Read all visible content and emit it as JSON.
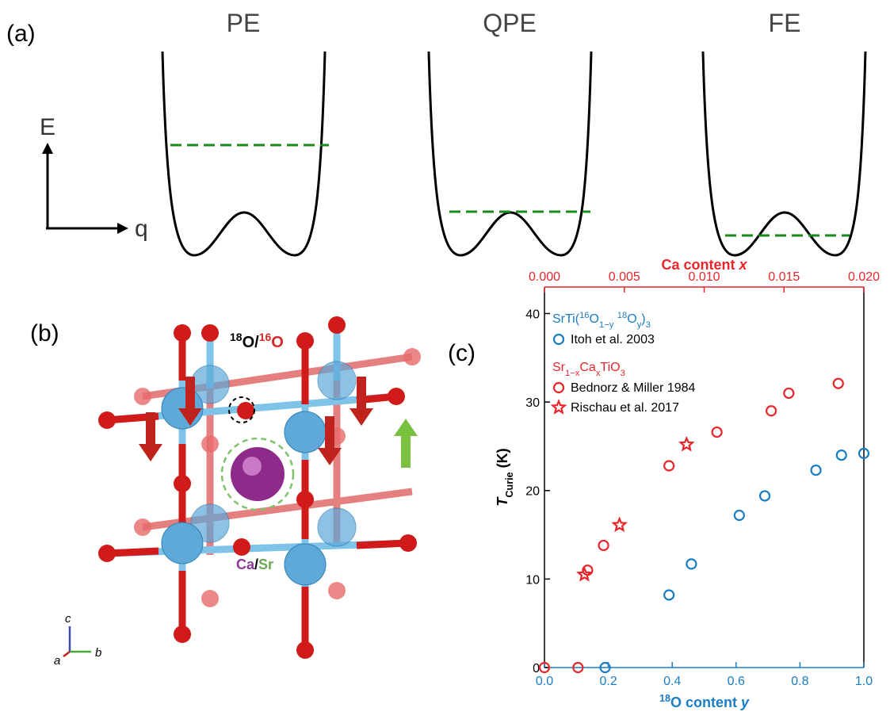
{
  "panel_a": {
    "label": "(a)",
    "titles": [
      "PE",
      "QPE",
      "FE"
    ],
    "energy_axis": "E",
    "coordinate_axis": "q"
  },
  "panel_b": {
    "label": "(b)",
    "isotope_label": [
      {
        "t": "18",
        "style": "sup"
      },
      {
        "t": "O/"
      },
      {
        "t": "16",
        "style": "sup",
        "color": "#d62728"
      },
      {
        "t": "O",
        "color": "#d62728"
      }
    ],
    "site_label": [
      {
        "t": "Ca",
        "color": "#8b3a96"
      },
      {
        "t": "/"
      },
      {
        "t": "Sr",
        "color": "#6aa84f"
      }
    ],
    "axes": [
      "c",
      "a",
      "b"
    ]
  },
  "chart_data": {
    "type": "scatter",
    "label": "(c)",
    "xlabel": [
      {
        "t": "18",
        "style": "sup"
      },
      {
        "t": "O content "
      },
      {
        "t": "y",
        "style": "italic"
      }
    ],
    "x2label": [
      {
        "t": "Ca content "
      },
      {
        "t": "x",
        "style": "italic"
      }
    ],
    "ylabel": [
      {
        "t": "T",
        "style": "italic"
      },
      {
        "t": "Curie",
        "style": "sub"
      },
      {
        "t": " (K)"
      }
    ],
    "xlim": [
      0,
      1
    ],
    "xticks": [
      {
        "value": 0,
        "label": "0.0"
      },
      0.2,
      0.4,
      0.6,
      0.8,
      {
        "value": 1,
        "label": "1.0"
      }
    ],
    "x2lim": [
      0,
      0.02
    ],
    "x2ticks": [
      {
        "value": 0,
        "label": "0.000"
      },
      0.005,
      {
        "value": 0.01,
        "label": "0.010"
      },
      0.015,
      {
        "value": 0.02,
        "label": "0.020"
      }
    ],
    "ylim": [
      0,
      43
    ],
    "yticks": [
      0,
      10,
      20,
      30,
      40
    ],
    "groups": [
      {
        "title": [
          {
            "t": "SrTi("
          },
          {
            "t": "16",
            "style": "sup"
          },
          {
            "t": "O"
          },
          {
            "t": "1−y",
            "style": "sub"
          },
          {
            "t": " "
          },
          {
            "t": "18",
            "style": "sup"
          },
          {
            "t": "O"
          },
          {
            "t": "y",
            "style": "sub"
          },
          {
            "t": ")"
          },
          {
            "t": "3",
            "style": "sub"
          }
        ],
        "color": "#1a7dc4",
        "series": [
          {
            "name": "Itoh et al. 2003",
            "color": "#1a7dc4",
            "marker": "circle",
            "x": [
              0.19,
              0.39,
              0.46,
              0.61,
              0.69,
              0.85,
              0.93,
              1.0
            ],
            "values": [
              0,
              8.2,
              11.7,
              17.2,
              19.4,
              22.3,
              24.0,
              24.2
            ]
          }
        ]
      },
      {
        "title": [
          {
            "t": "Sr"
          },
          {
            "t": "1−x",
            "style": "sub"
          },
          {
            "t": "Ca"
          },
          {
            "t": "x",
            "style": "sub"
          },
          {
            "t": "TiO"
          },
          {
            "t": "3",
            "style": "sub"
          }
        ],
        "color": "#e8262b",
        "series": [
          {
            "name": "Bednorz & Miller 1984",
            "color": "#e8262b",
            "marker": "circle",
            "axis": "x2",
            "x": [
              0.0,
              0.0021,
              0.0027,
              0.0037,
              0.0078,
              0.0108,
              0.0142,
              0.0153,
              0.0184
            ],
            "values": [
              0,
              0,
              11.0,
              13.8,
              22.8,
              26.6,
              29.0,
              31.0,
              32.1
            ]
          },
          {
            "name": "Rischau et al. 2017",
            "color": "#e8262b",
            "marker": "star",
            "axis": "x2",
            "x": [
              0.0025,
              0.0047,
              0.0089
            ],
            "values": [
              10.5,
              16.1,
              25.2
            ]
          }
        ]
      }
    ]
  }
}
